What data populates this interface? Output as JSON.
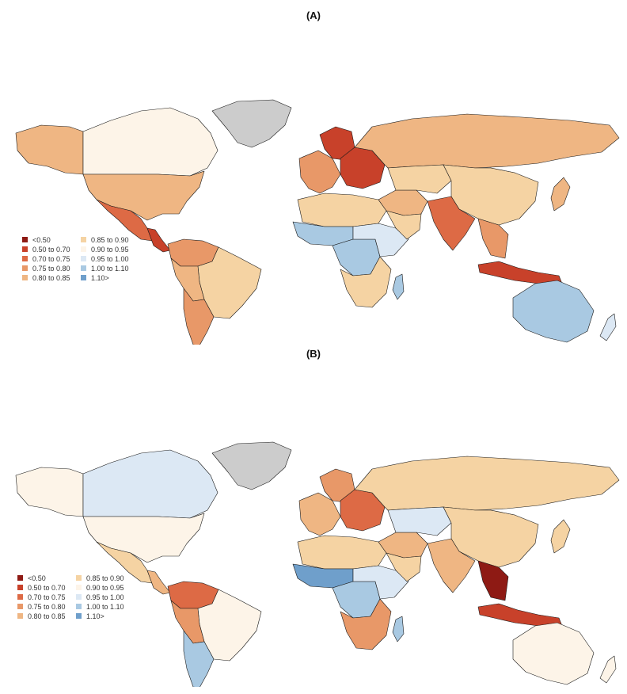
{
  "panels": [
    {
      "title": "(A)",
      "legend": [
        {
          "label": "<0.50",
          "color": "#8e1a14"
        },
        {
          "label": "0.50 to 0.70",
          "color": "#c8412a"
        },
        {
          "label": "0.70 to 0.75",
          "color": "#dd6a45"
        },
        {
          "label": "0.75 to 0.80",
          "color": "#e89868"
        },
        {
          "label": "0.80 to 0.85",
          "color": "#efb683"
        },
        {
          "label": "0.85 to 0.90",
          "color": "#f5d3a3"
        },
        {
          "label": "0.90 to 0.95",
          "color": "#fdf4e8"
        },
        {
          "label": "0.95 to 1.00",
          "color": "#dce8f4"
        },
        {
          "label": "1.00 to 1.10",
          "color": "#a9c9e2"
        },
        {
          "label": "1.10>",
          "color": "#6f9fcb"
        }
      ],
      "no_data_color": "#cccccc",
      "regions": [
        {
          "name": "greenland",
          "cls": "nodata"
        },
        {
          "name": "alaska",
          "cls": 4
        },
        {
          "name": "canada",
          "cls": 6
        },
        {
          "name": "united-states",
          "cls": 4
        },
        {
          "name": "mexico",
          "cls": 2
        },
        {
          "name": "central-america",
          "cls": 1
        },
        {
          "name": "colombia-venezuela",
          "cls": 3
        },
        {
          "name": "brazil",
          "cls": 5
        },
        {
          "name": "peru-bolivia",
          "cls": 4
        },
        {
          "name": "argentina-chile",
          "cls": 3
        },
        {
          "name": "europe-west",
          "cls": 3
        },
        {
          "name": "scandinavia",
          "cls": 1
        },
        {
          "name": "eastern-europe",
          "cls": 1
        },
        {
          "name": "russia",
          "cls": 4
        },
        {
          "name": "north-africa",
          "cls": 5
        },
        {
          "name": "west-africa",
          "cls": 8
        },
        {
          "name": "central-africa",
          "cls": 8
        },
        {
          "name": "east-africa",
          "cls": 7
        },
        {
          "name": "southern-africa",
          "cls": 5
        },
        {
          "name": "madagascar",
          "cls": 8
        },
        {
          "name": "middle-east",
          "cls": 4
        },
        {
          "name": "arabian-peninsula",
          "cls": 5
        },
        {
          "name": "central-asia",
          "cls": 5
        },
        {
          "name": "mongolia",
          "cls": 7
        },
        {
          "name": "china",
          "cls": 5
        },
        {
          "name": "india",
          "cls": 2
        },
        {
          "name": "southeast-asia",
          "cls": 3
        },
        {
          "name": "indonesia",
          "cls": 1
        },
        {
          "name": "japan",
          "cls": 4
        },
        {
          "name": "australia",
          "cls": 8
        },
        {
          "name": "new-zealand",
          "cls": 7
        }
      ]
    },
    {
      "title": "(B)",
      "legend": [
        {
          "label": "<0.50",
          "color": "#8e1a14"
        },
        {
          "label": "0.50 to 0.70",
          "color": "#c8412a"
        },
        {
          "label": "0.70 to 0.75",
          "color": "#dd6a45"
        },
        {
          "label": "0.75 to 0.80",
          "color": "#e89868"
        },
        {
          "label": "0.80 to 0.85",
          "color": "#efb683"
        },
        {
          "label": "0.85 to 0.90",
          "color": "#f5d3a3"
        },
        {
          "label": "0.90 to 0.95",
          "color": "#fdf4e8"
        },
        {
          "label": "0.95 to 1.00",
          "color": "#dce8f4"
        },
        {
          "label": "1.00 to 1.10",
          "color": "#a9c9e2"
        },
        {
          "label": "1.10>",
          "color": "#6f9fcb"
        }
      ],
      "no_data_color": "#cccccc",
      "regions": [
        {
          "name": "greenland",
          "cls": "nodata"
        },
        {
          "name": "alaska",
          "cls": 6
        },
        {
          "name": "canada",
          "cls": 7
        },
        {
          "name": "united-states",
          "cls": 6
        },
        {
          "name": "mexico",
          "cls": 5
        },
        {
          "name": "central-america",
          "cls": 4
        },
        {
          "name": "colombia-venezuela",
          "cls": 2
        },
        {
          "name": "brazil",
          "cls": 6
        },
        {
          "name": "peru-bolivia",
          "cls": 3
        },
        {
          "name": "argentina-chile",
          "cls": 8
        },
        {
          "name": "europe-west",
          "cls": 4
        },
        {
          "name": "scandinavia",
          "cls": 3
        },
        {
          "name": "eastern-europe",
          "cls": 2
        },
        {
          "name": "russia",
          "cls": 5
        },
        {
          "name": "north-africa",
          "cls": 5
        },
        {
          "name": "west-africa",
          "cls": 9
        },
        {
          "name": "central-africa",
          "cls": 8
        },
        {
          "name": "east-africa",
          "cls": 7
        },
        {
          "name": "southern-africa",
          "cls": 3
        },
        {
          "name": "madagascar",
          "cls": 8
        },
        {
          "name": "middle-east",
          "cls": 4
        },
        {
          "name": "arabian-peninsula",
          "cls": 5
        },
        {
          "name": "central-asia",
          "cls": 7
        },
        {
          "name": "mongolia",
          "cls": 1
        },
        {
          "name": "china",
          "cls": 5
        },
        {
          "name": "india",
          "cls": 4
        },
        {
          "name": "southeast-asia",
          "cls": 0
        },
        {
          "name": "indonesia",
          "cls": 1
        },
        {
          "name": "japan",
          "cls": 5
        },
        {
          "name": "australia",
          "cls": 6
        },
        {
          "name": "new-zealand",
          "cls": 6
        }
      ]
    }
  ]
}
